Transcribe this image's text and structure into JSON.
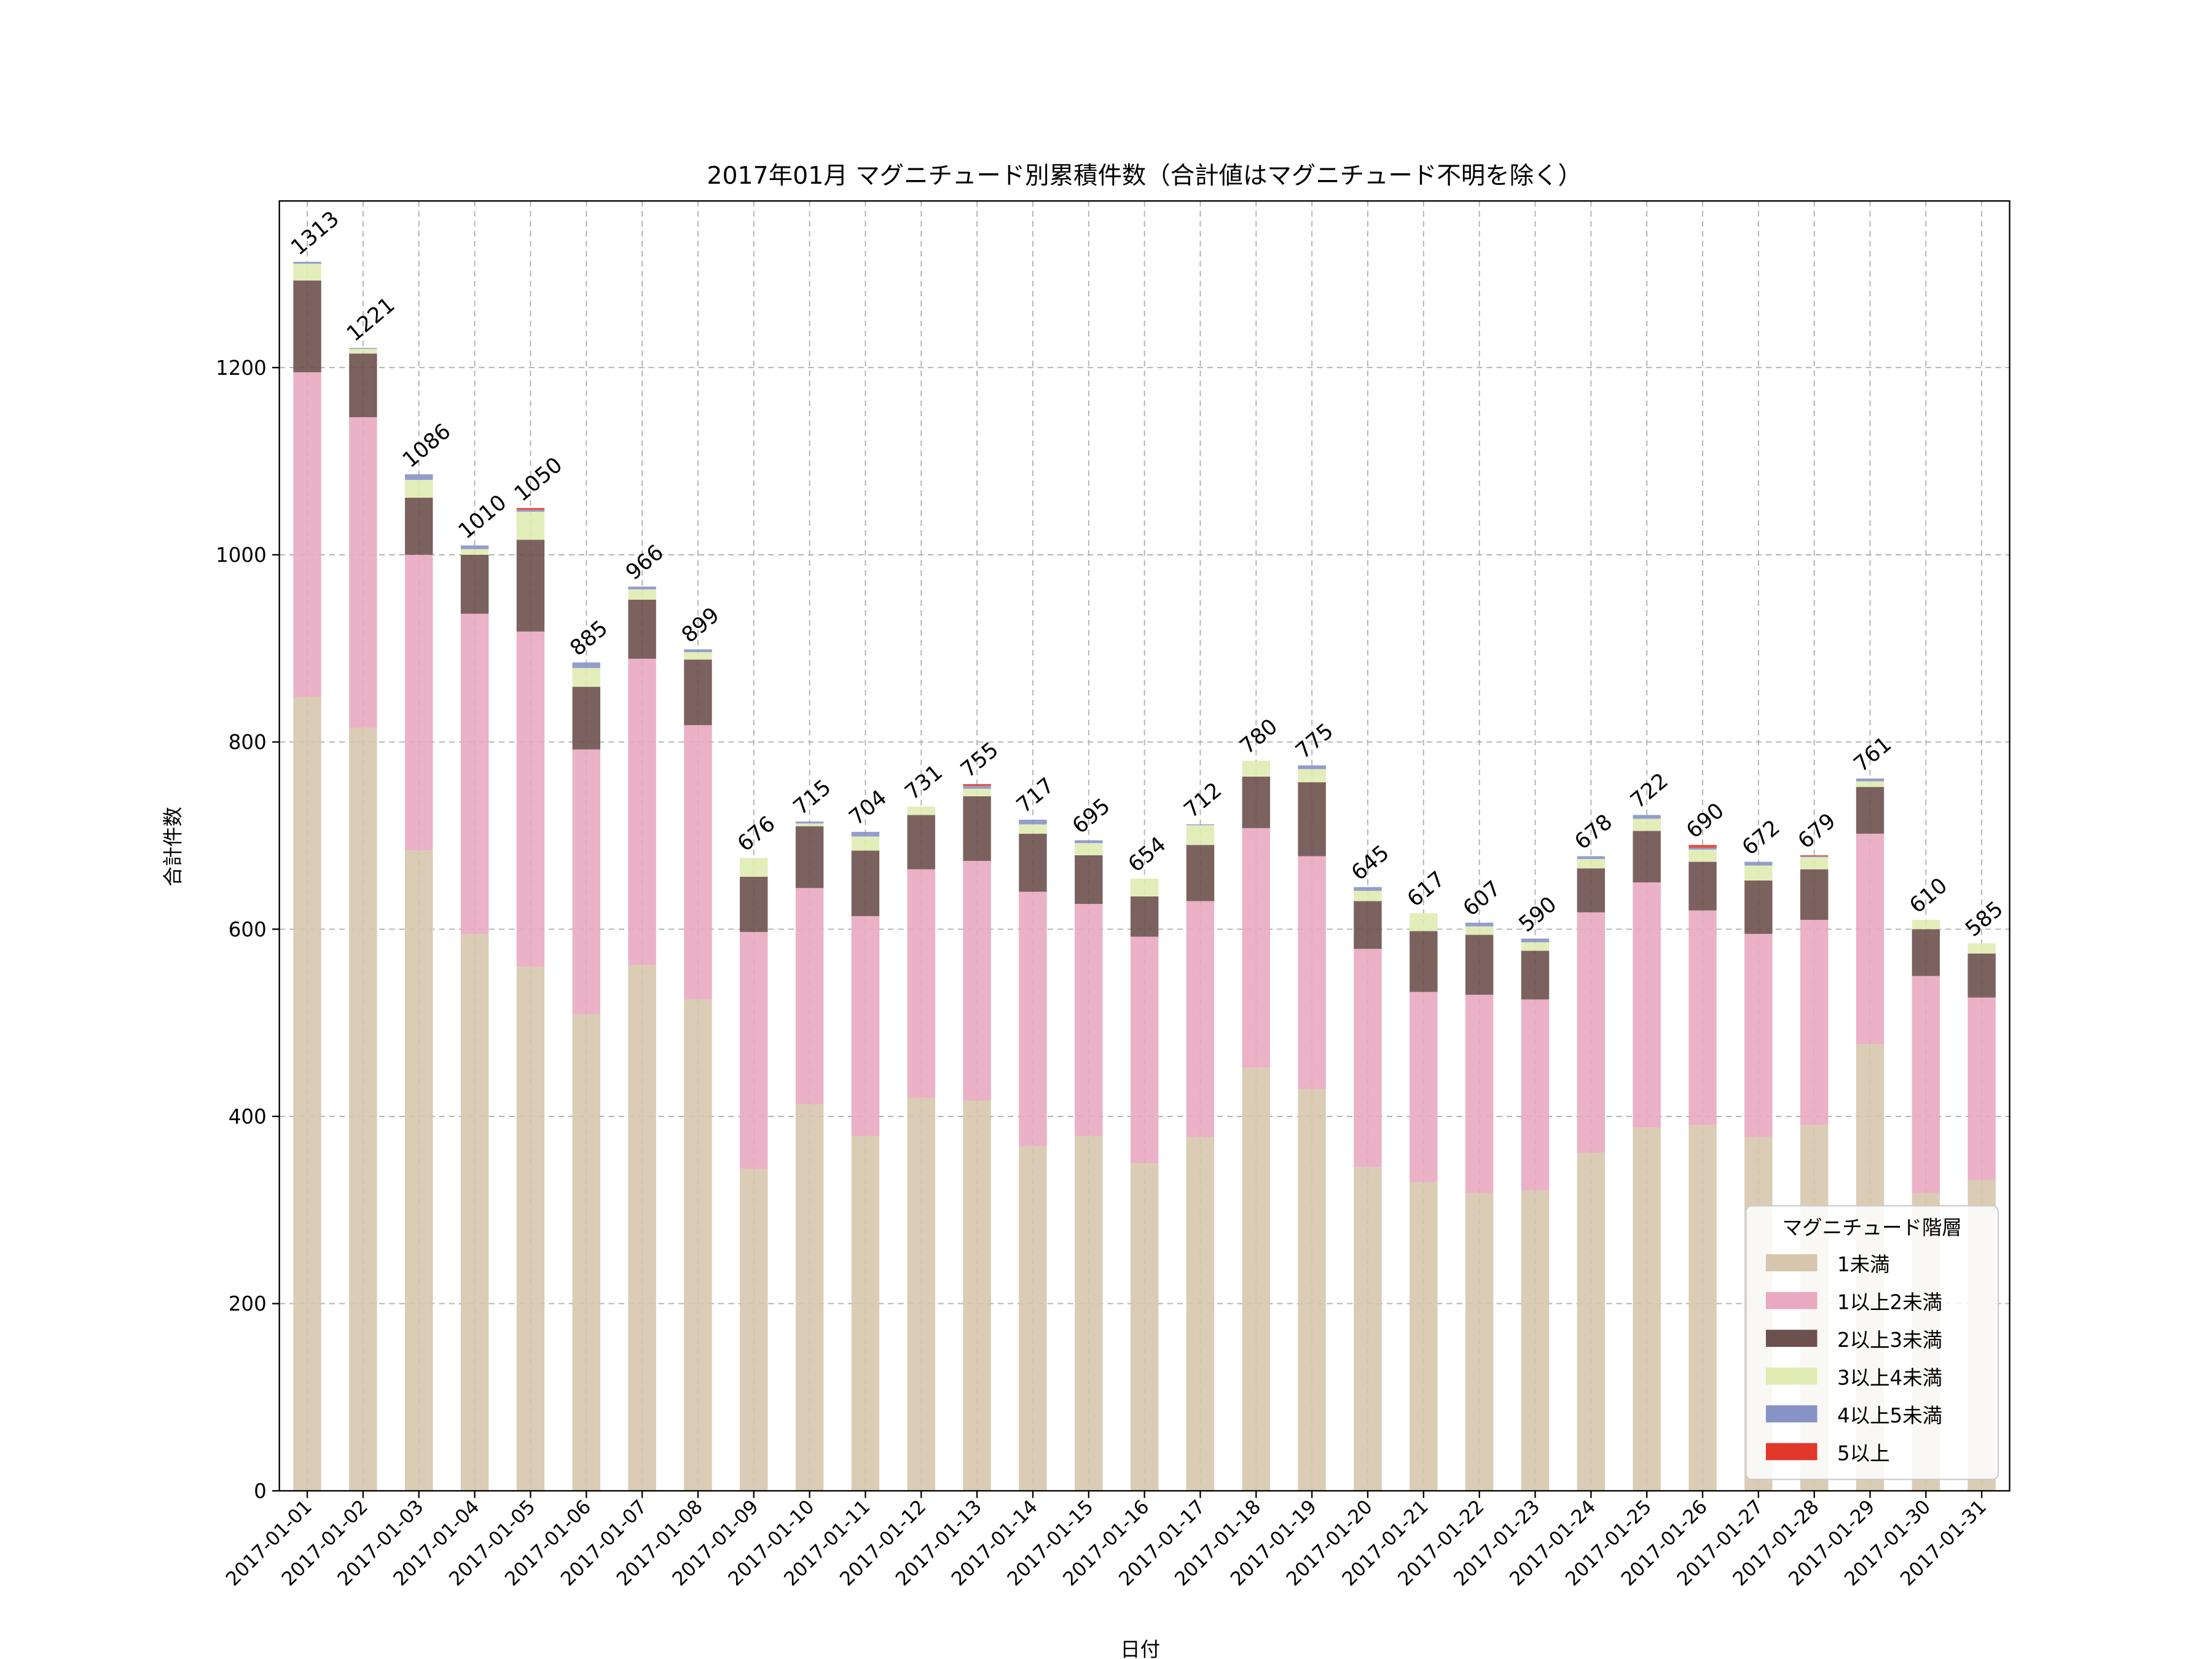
{
  "chart_data": {
    "type": "bar",
    "stacked": true,
    "title": "2017年01月 マグニチュード別累積件数（合計値はマグニチュード不明を除く）",
    "xlabel": "日付",
    "ylabel": "合計件数",
    "ylim": [
      0,
      1378
    ],
    "yticks": [
      0,
      200,
      400,
      600,
      800,
      1000,
      1200
    ],
    "grid": true,
    "legend": {
      "title": "マグニチュード階層",
      "placement": "lower-right"
    },
    "categories": [
      "2017-01-01",
      "2017-01-02",
      "2017-01-03",
      "2017-01-04",
      "2017-01-05",
      "2017-01-06",
      "2017-01-07",
      "2017-01-08",
      "2017-01-09",
      "2017-01-10",
      "2017-01-11",
      "2017-01-12",
      "2017-01-13",
      "2017-01-14",
      "2017-01-15",
      "2017-01-16",
      "2017-01-17",
      "2017-01-18",
      "2017-01-19",
      "2017-01-20",
      "2017-01-21",
      "2017-01-22",
      "2017-01-23",
      "2017-01-24",
      "2017-01-25",
      "2017-01-26",
      "2017-01-27",
      "2017-01-28",
      "2017-01-29",
      "2017-01-30",
      "2017-01-31"
    ],
    "series": [
      {
        "name": "1未満",
        "color": "#d6c6ad",
        "values": [
          848,
          815,
          684,
          595,
          560,
          509,
          562,
          525,
          344,
          413,
          379,
          420,
          417,
          368,
          379,
          350,
          378,
          452,
          429,
          346,
          330,
          318,
          321,
          361,
          388,
          391,
          378,
          391,
          477,
          318,
          332
        ]
      },
      {
        "name": "1以上2未満",
        "color": "#e8a9c1",
        "values": [
          347,
          332,
          316,
          342,
          358,
          283,
          327,
          293,
          253,
          231,
          235,
          244,
          256,
          272,
          248,
          242,
          252,
          256,
          249,
          233,
          203,
          212,
          204,
          257,
          262,
          229,
          217,
          219,
          225,
          232,
          195
        ]
      },
      {
        "name": "2以上3未満",
        "color": "#6d514e",
        "values": [
          98,
          68,
          61,
          63,
          98,
          67,
          63,
          70,
          59,
          66,
          70,
          58,
          69,
          62,
          52,
          43,
          60,
          55,
          79,
          51,
          65,
          64,
          52,
          47,
          55,
          52,
          57,
          54,
          50,
          50,
          47
        ]
      },
      {
        "name": "3以上4未満",
        "color": "#e0ebb2",
        "values": [
          18,
          5,
          19,
          6,
          30,
          20,
          11,
          8,
          20,
          3,
          15,
          9,
          8,
          10,
          13,
          19,
          21,
          17,
          14,
          11,
          19,
          9,
          9,
          10,
          13,
          13,
          16,
          13,
          6,
          10,
          11
        ]
      },
      {
        "name": "4以上5未満",
        "color": "#8792c7",
        "values": [
          2,
          1,
          6,
          4,
          2,
          6,
          3,
          3,
          0,
          2,
          5,
          0,
          3,
          5,
          3,
          0,
          1,
          0,
          4,
          4,
          0,
          4,
          4,
          3,
          4,
          2,
          4,
          1,
          3,
          0,
          0
        ]
      },
      {
        "name": "5以上",
        "color": "#e2372b",
        "values": [
          0,
          0,
          0,
          0,
          2,
          0,
          0,
          0,
          0,
          0,
          0,
          0,
          2,
          0,
          0,
          0,
          0,
          0,
          0,
          0,
          0,
          0,
          0,
          0,
          0,
          3,
          0,
          1,
          0,
          0,
          0
        ]
      }
    ],
    "totals": [
      1313,
      1221,
      1086,
      1010,
      1050,
      885,
      966,
      899,
      676,
      715,
      704,
      731,
      755,
      717,
      695,
      654,
      712,
      780,
      775,
      645,
      617,
      607,
      590,
      678,
      722,
      690,
      672,
      679,
      761,
      610,
      585
    ]
  }
}
